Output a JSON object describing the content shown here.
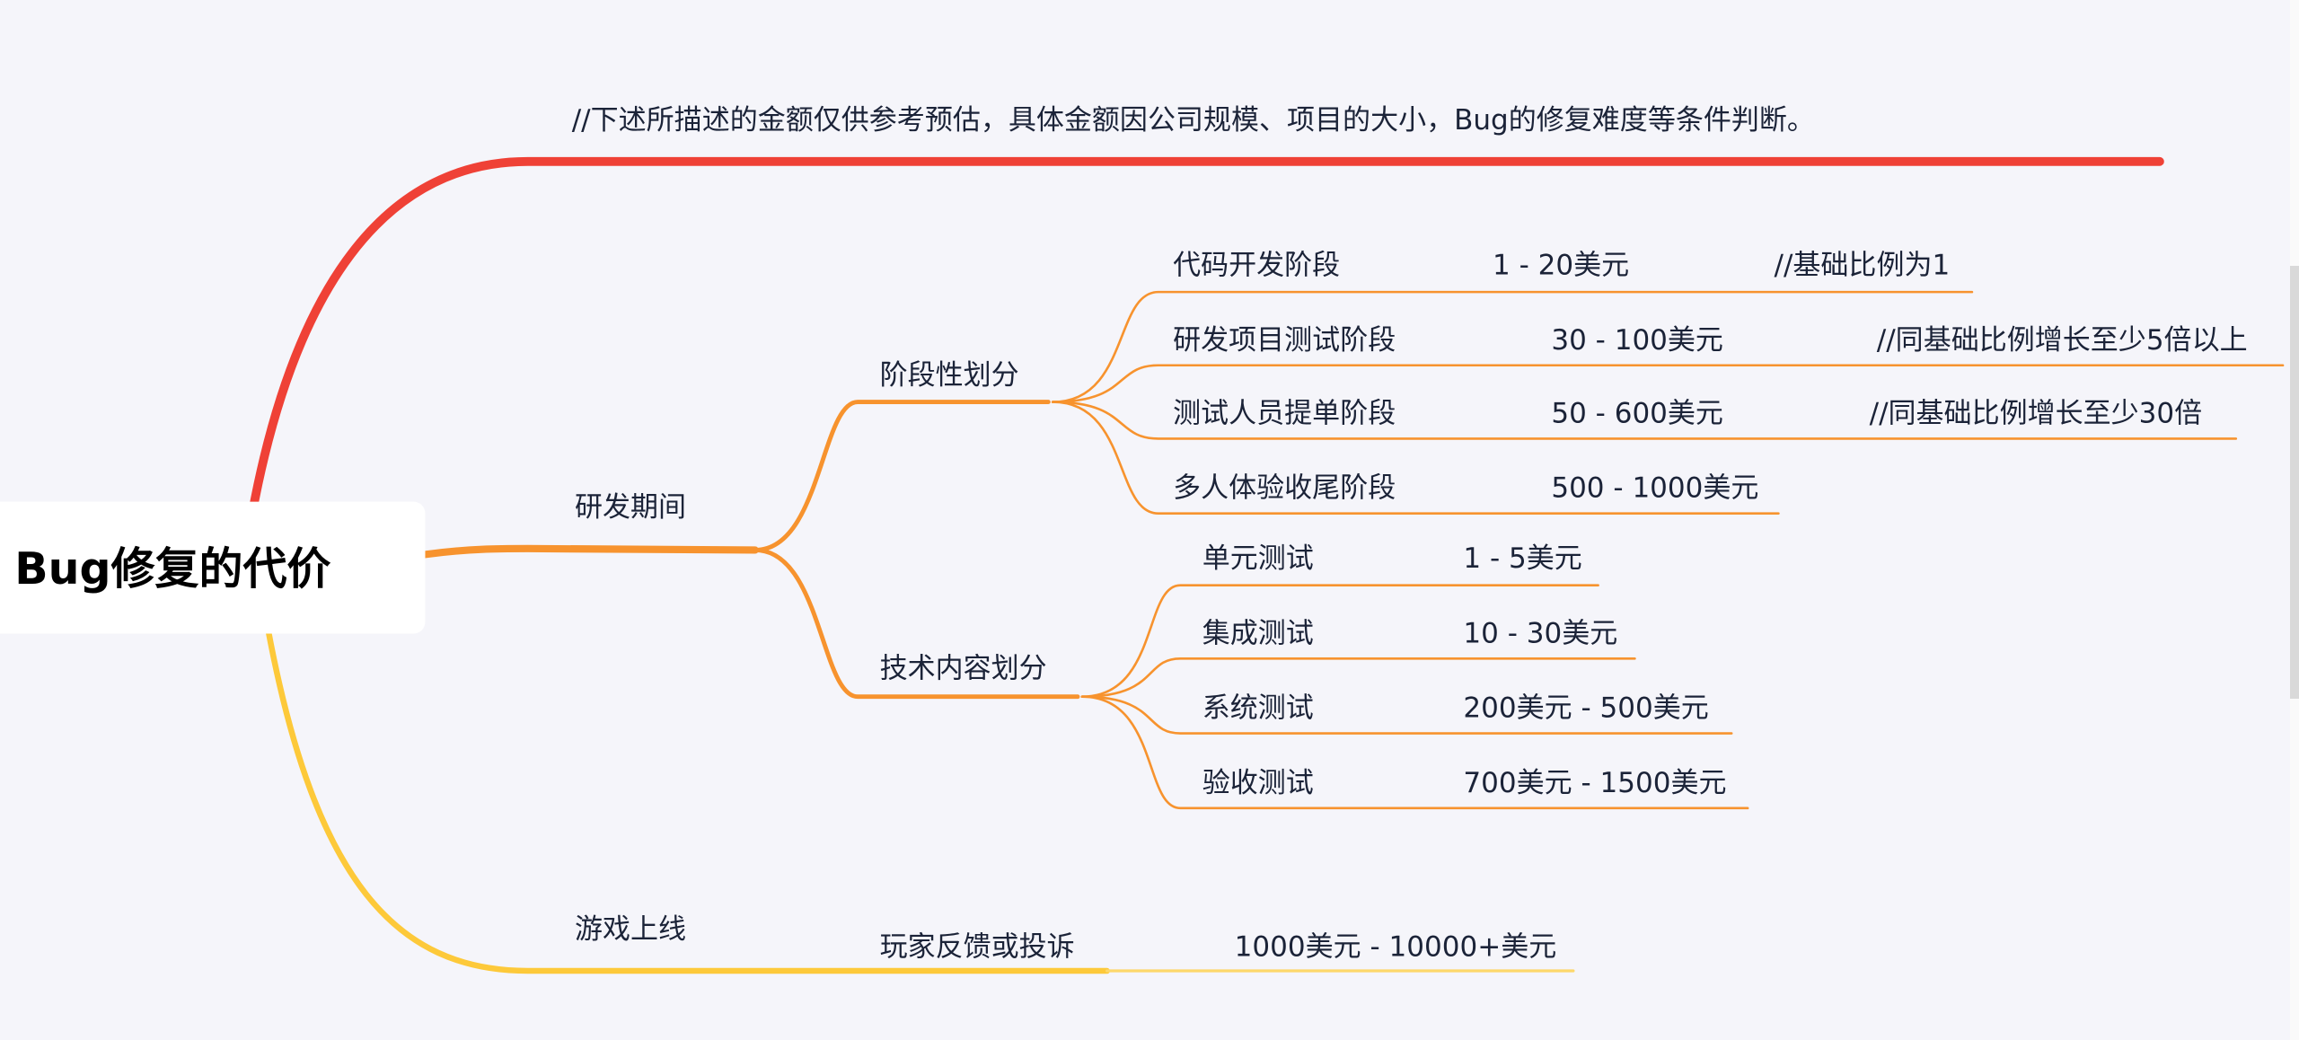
{
  "root": {
    "label": "Bug修复的代价"
  },
  "colors": {
    "red": "#ef4136",
    "orange": "#f7932e",
    "yellow": "#fdc93a",
    "background": "#f5f5fa",
    "text": "#1b2338"
  },
  "note": {
    "label": "//下述所描述的金额仅供参考预估，具体金额因公司规模、项目的大小，Bug的修复难度等条件判断。"
  },
  "dev": {
    "label": "研发期间",
    "stage": {
      "label": "阶段性划分",
      "items": [
        {
          "label": "代码开发阶段",
          "cost": "1 - 20美元",
          "comment": "//基础比例为1"
        },
        {
          "label": "研发项目测试阶段",
          "cost": "30 - 100美元",
          "comment": "//同基础比例增长至少5倍以上"
        },
        {
          "label": "测试人员提单阶段",
          "cost": "50 - 600美元",
          "comment": "//同基础比例增长至少30倍"
        },
        {
          "label": "多人体验收尾阶段",
          "cost": "500 - 1000美元"
        }
      ]
    },
    "tech": {
      "label": "技术内容划分",
      "items": [
        {
          "label": "单元测试",
          "cost": "1 - 5美元"
        },
        {
          "label": "集成测试",
          "cost": "10 - 30美元"
        },
        {
          "label": "系统测试",
          "cost": "200美元 - 500美元"
        },
        {
          "label": "验收测试",
          "cost": "700美元 - 1500美元"
        }
      ]
    }
  },
  "live": {
    "label": "游戏上线",
    "item": {
      "label": "玩家反馈或投诉",
      "cost": "1000美元 - 10000+美元"
    }
  }
}
